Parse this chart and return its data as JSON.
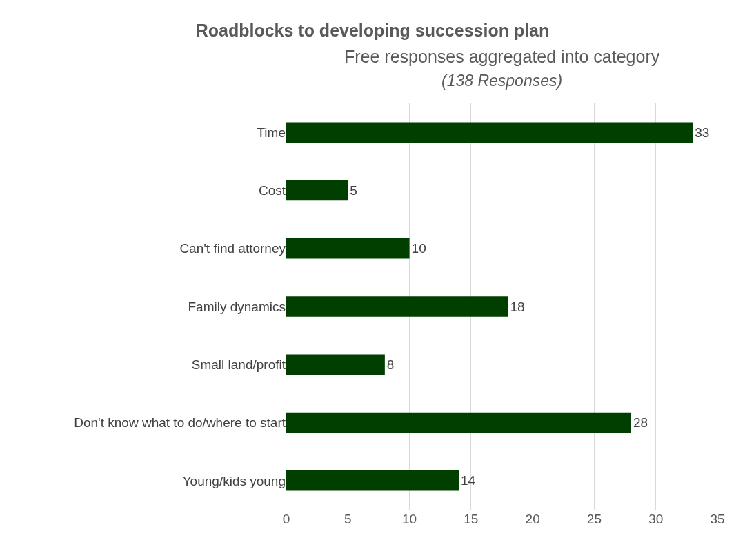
{
  "chart_data": {
    "type": "bar",
    "orientation": "horizontal",
    "title": "Roadblocks to developing succession plan",
    "subtitle": "Free responses aggregated into category",
    "annotations": [
      "(138 Responses)"
    ],
    "categories": [
      "Time",
      "Cost",
      "Can't find attorney",
      "Family dynamics",
      "Small land/profit",
      "Don't know what to do/where to start",
      "Young/kids young"
    ],
    "values": [
      33,
      5,
      10,
      18,
      8,
      28,
      14
    ],
    "color": "#003f00",
    "xlim": [
      0,
      35
    ],
    "xticks": [
      0,
      5,
      10,
      15,
      20,
      25,
      30,
      35
    ],
    "grid": "x",
    "data_labels": true,
    "legend": false
  }
}
